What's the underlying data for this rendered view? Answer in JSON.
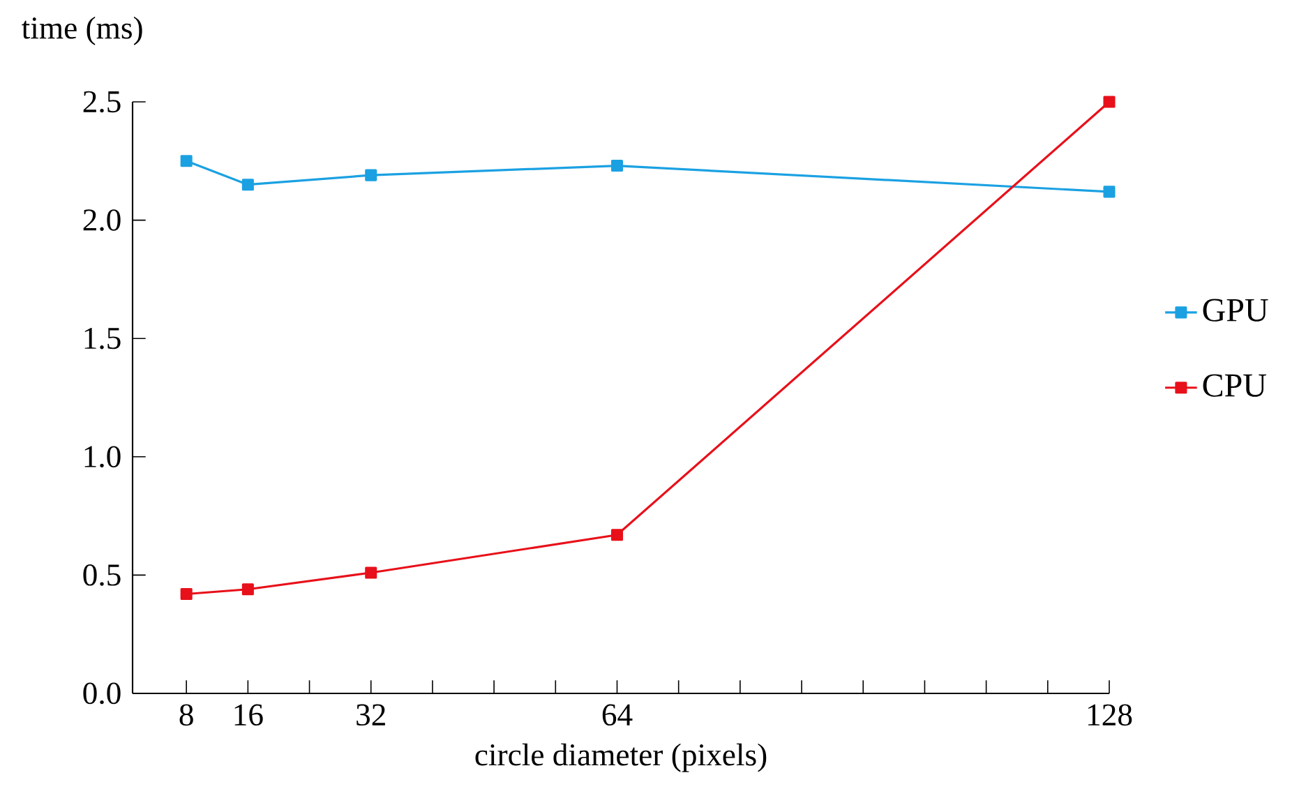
{
  "chart_data": {
    "type": "line",
    "xlabel": "circle diameter (pixels)",
    "ylabel": "time (ms)",
    "x": [
      8,
      16,
      32,
      64,
      128
    ],
    "series": [
      {
        "name": "GPU",
        "color": "#1ba1e2",
        "values": [
          2.25,
          2.15,
          2.19,
          2.23,
          2.12
        ]
      },
      {
        "name": "CPU",
        "color": "#e8101a",
        "values": [
          0.42,
          0.44,
          0.51,
          0.67,
          2.5
        ]
      }
    ],
    "xlim": [
      1,
      128
    ],
    "ylim": [
      0,
      2.5
    ],
    "xticks": [
      8,
      16,
      {
        "value": 24,
        "label": null
      },
      32,
      {
        "value": 40,
        "label": null
      },
      {
        "value": 48,
        "label": null
      },
      {
        "value": 56,
        "label": null
      },
      64,
      {
        "value": 72,
        "label": null
      },
      {
        "value": 80,
        "label": null
      },
      {
        "value": 88,
        "label": null
      },
      {
        "value": 96,
        "label": null
      },
      {
        "value": 104,
        "label": null
      },
      {
        "value": 112,
        "label": null
      },
      {
        "value": 120,
        "label": null
      },
      128
    ],
    "yticks": [
      {
        "value": 0,
        "label": "0.0"
      },
      {
        "value": 0.5,
        "label": "0.5"
      },
      {
        "value": 1,
        "label": "1.0"
      },
      {
        "value": 1.5,
        "label": "1.5"
      },
      {
        "value": 2,
        "label": "2.0"
      },
      {
        "value": 2.5,
        "label": "2.5"
      }
    ],
    "legend": "right",
    "marker": "square",
    "line_style": "solid"
  }
}
